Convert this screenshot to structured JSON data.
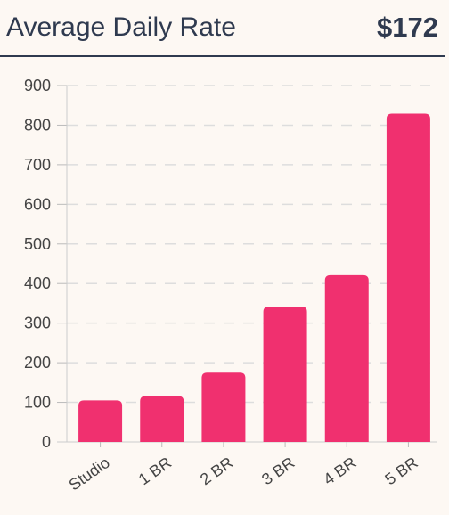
{
  "header": {
    "title": "Average Daily Rate",
    "value": "$172"
  },
  "colors": {
    "bar": "#f0306f",
    "text": "#2f3a4f",
    "grid": "#dddddd",
    "background": "#fdf8f3"
  },
  "chart_data": {
    "type": "bar",
    "categories": [
      "Studio",
      "1 BR",
      "2 BR",
      "3 BR",
      "4 BR",
      "5 BR"
    ],
    "values": [
      105,
      116,
      175,
      342,
      421,
      829
    ],
    "ylim": [
      0,
      900
    ],
    "yticks": [
      0,
      100,
      200,
      300,
      400,
      500,
      600,
      700,
      800,
      900
    ],
    "grid": true,
    "xlabel": "",
    "ylabel": ""
  }
}
